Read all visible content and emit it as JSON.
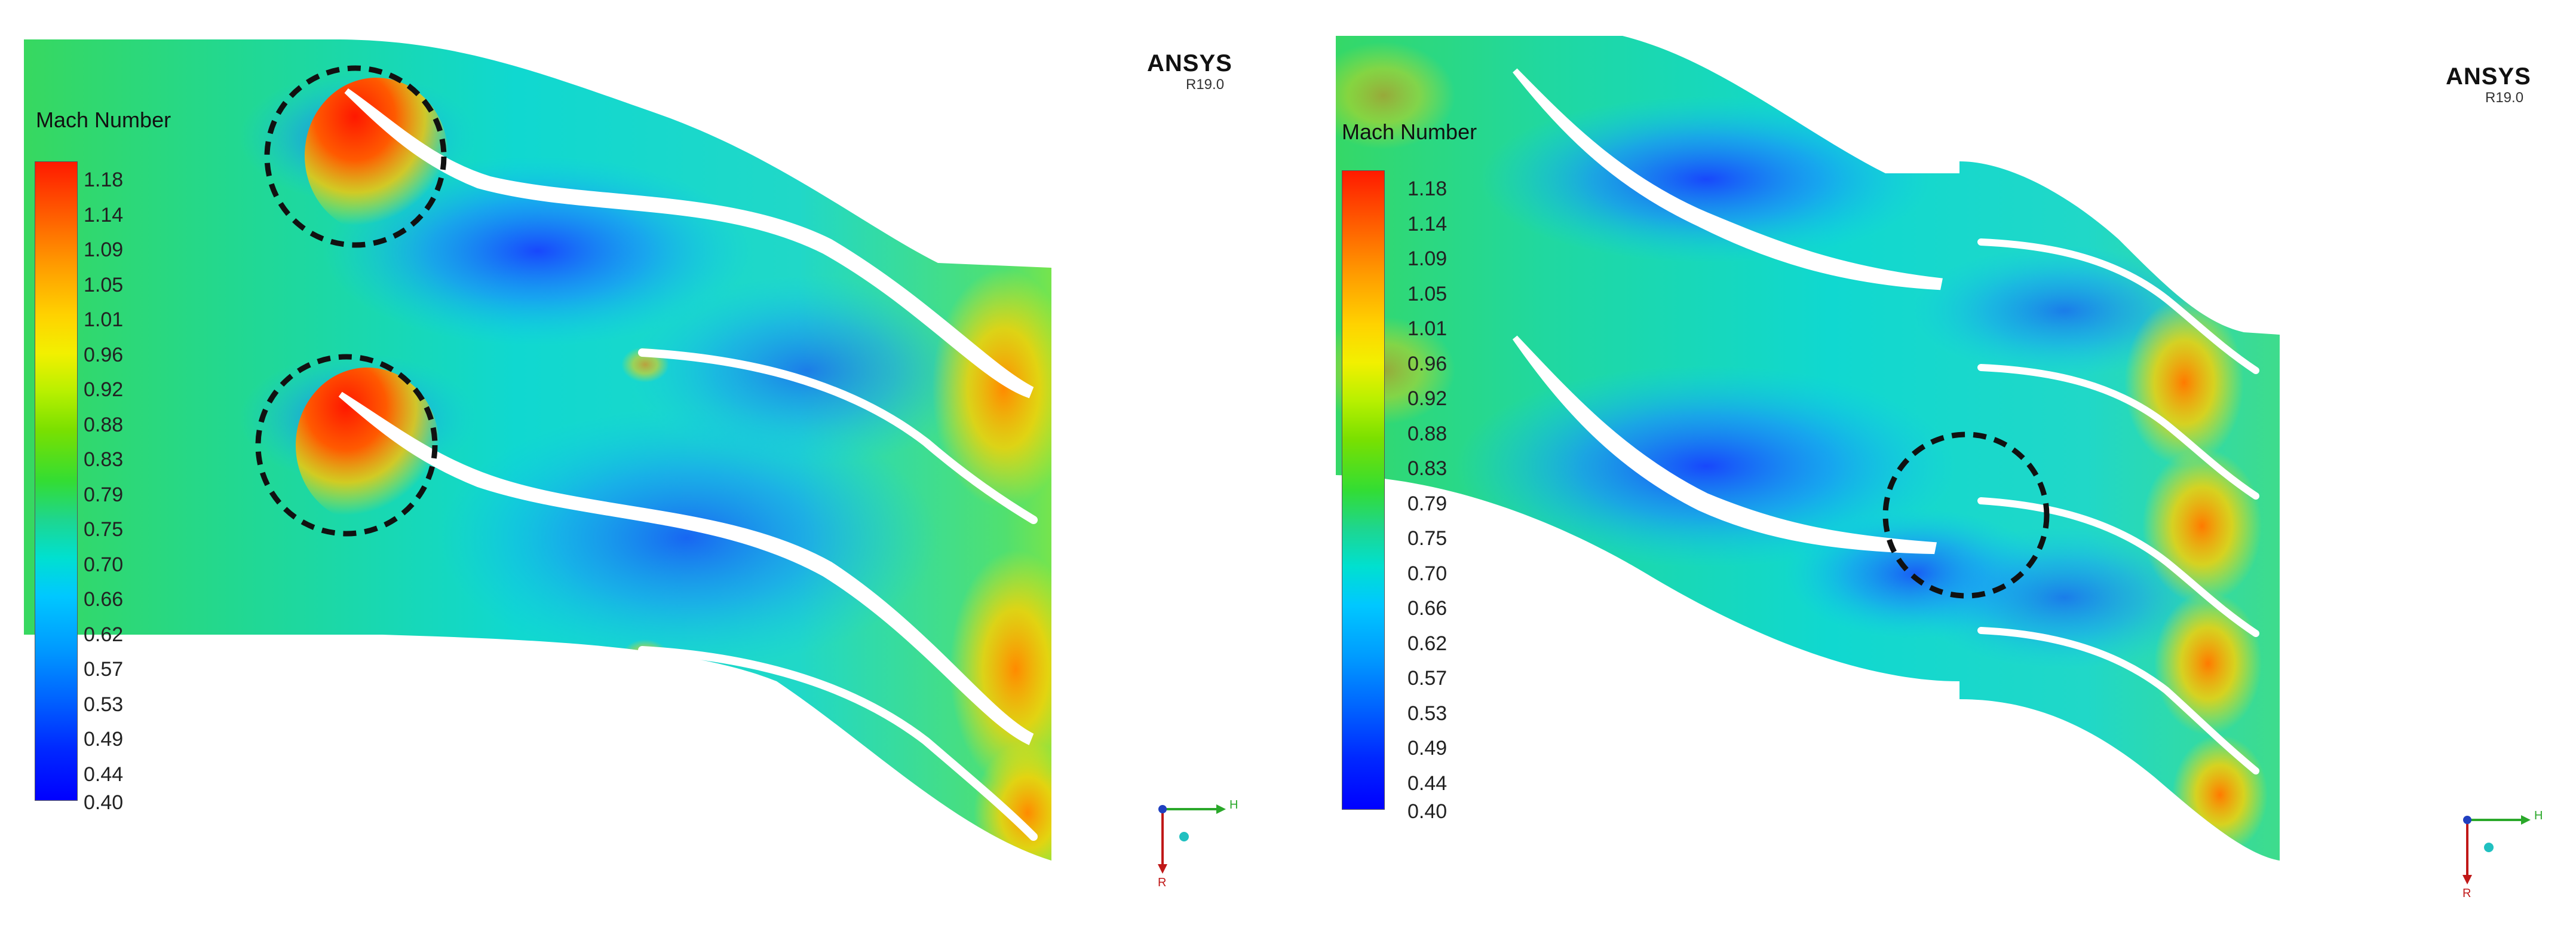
{
  "panels": [
    {
      "legend_title": "Mach Number",
      "ticks": [
        "1.18",
        "1.14",
        "1.09",
        "1.05",
        "1.01",
        "0.96",
        "0.92",
        "0.88",
        "0.83",
        "0.79",
        "0.75",
        "0.70",
        "0.66",
        "0.62",
        "0.57",
        "0.53",
        "0.49",
        "0.44",
        "0.40"
      ],
      "brand": "ANSYS",
      "version": "R19.0",
      "axis_h": "H",
      "axis_v": "R"
    },
    {
      "legend_title": "Mach Number",
      "ticks": [
        "1.18",
        "1.14",
        "1.09",
        "1.05",
        "1.01",
        "0.96",
        "0.92",
        "0.88",
        "0.83",
        "0.79",
        "0.75",
        "0.70",
        "0.66",
        "0.62",
        "0.57",
        "0.53",
        "0.49",
        "0.44",
        "0.40"
      ],
      "brand": "ANSYS",
      "version": "R19.0",
      "axis_h": "H",
      "axis_v": "R"
    }
  ],
  "colors": {
    "max": "#ff1a00",
    "mid": "#33dd33",
    "min": "#0000ff",
    "highlight_circle": "#111111"
  }
}
